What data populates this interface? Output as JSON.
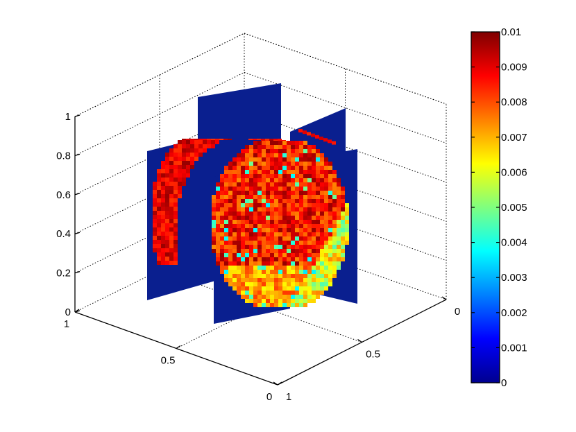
{
  "chart_data": {
    "type": "heatmap",
    "title": "",
    "xlabel": "",
    "ylabel": "",
    "zlabel": "",
    "xlim": [
      0,
      1
    ],
    "ylim": [
      0,
      1
    ],
    "zlim": [
      0,
      1
    ],
    "x_ticks": [
      "0",
      "0.5",
      "1"
    ],
    "y_ticks": [
      "1",
      "0.5",
      "0"
    ],
    "z_ticks": [
      "0",
      "0.2",
      "0.4",
      "0.6",
      "0.8",
      "1"
    ],
    "grid": true,
    "colormap": "jet",
    "colorbar": {
      "range": [
        0,
        0.01
      ],
      "ticks": [
        "0",
        "0.001",
        "0.002",
        "0.003",
        "0.004",
        "0.005",
        "0.006",
        "0.007",
        "0.008",
        "0.009",
        "0.01"
      ],
      "placement": "right"
    },
    "slices": [
      {
        "plane": "x",
        "position": 0.5,
        "background_value": 0
      },
      {
        "plane": "y",
        "position": 0.5,
        "background_value": 0
      }
    ],
    "colors": {
      "background_slice": "#0a1f8f",
      "high": "#7f0000",
      "low": "#00008f"
    }
  }
}
